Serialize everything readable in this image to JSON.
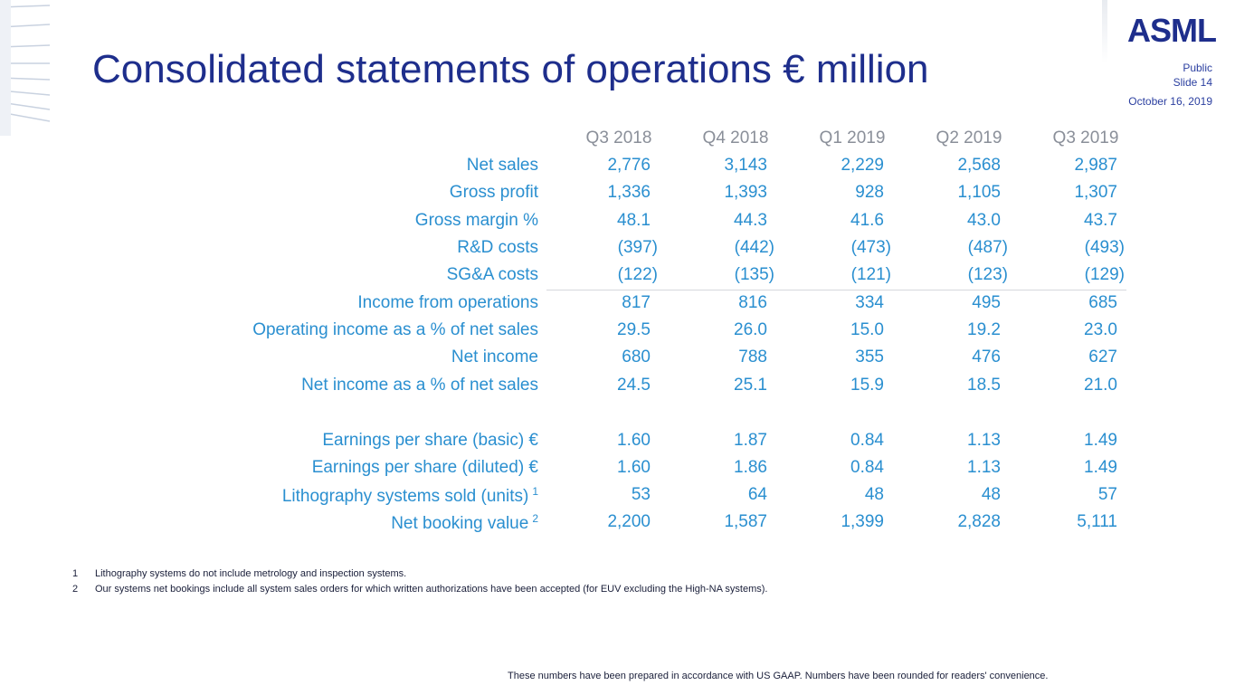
{
  "header": {
    "title": "Consolidated statements of operations € million",
    "classification": "Public",
    "slide_label": "Slide 14",
    "date": "October 16, 2019",
    "logo_text": "ASML",
    "brand_color": "#1e2e8c",
    "accent_color": "#2a8fd0"
  },
  "table": {
    "columns": [
      "Q3 2018",
      "Q4 2018",
      "Q1 2019",
      "Q2 2019",
      "Q3 2019"
    ],
    "rows": [
      {
        "label": "Net sales",
        "values": [
          "2,776",
          "3,143",
          "2,229",
          "2,568",
          "2,987"
        ]
      },
      {
        "label": "Gross profit",
        "values": [
          "1,336",
          "1,393",
          "928",
          "1,105",
          "1,307"
        ]
      },
      {
        "label": "Gross margin %",
        "values": [
          "48.1",
          "44.3",
          "41.6",
          "43.0",
          "43.7"
        ]
      },
      {
        "label": "R&D costs",
        "values": [
          "(397)",
          "(442)",
          "(473)",
          "(487)",
          "(493)"
        ]
      },
      {
        "label": "SG&A costs",
        "values": [
          "(122)",
          "(135)",
          "(121)",
          "(123)",
          "(129)"
        ]
      },
      {
        "label": "Income from operations",
        "values": [
          "817",
          "816",
          "334",
          "495",
          "685"
        ]
      },
      {
        "label": "Operating income as a % of net sales",
        "values": [
          "29.5",
          "26.0",
          "15.0",
          "19.2",
          "23.0"
        ]
      },
      {
        "label": "Net income",
        "values": [
          "680",
          "788",
          "355",
          "476",
          "627"
        ]
      },
      {
        "label": "Net income as a % of net sales",
        "values": [
          "24.5",
          "25.1",
          "15.9",
          "18.5",
          "21.0"
        ]
      },
      {
        "label": "Earnings per share (basic) €",
        "values": [
          "1.60",
          "1.87",
          "0.84",
          "1.13",
          "1.49"
        ]
      },
      {
        "label": "Earnings per share (diluted) €",
        "values": [
          "1.60",
          "1.86",
          "0.84",
          "1.13",
          "1.49"
        ]
      },
      {
        "label": "Lithography systems sold (units)",
        "sup": "1",
        "values": [
          "53",
          "64",
          "48",
          "48",
          "57"
        ]
      },
      {
        "label": "Net booking value",
        "sup": "2",
        "values": [
          "2,200",
          "1,587",
          "1,399",
          "2,828",
          "5,111"
        ]
      }
    ]
  },
  "footnotes": [
    {
      "num": "1",
      "text": "Lithography systems do not include metrology and inspection systems."
    },
    {
      "num": "2",
      "text": "Our systems net bookings include all system sales orders for which written authorizations have been accepted (for EUV excluding the High-NA systems)."
    }
  ],
  "disclaimer": "These numbers have been prepared in accordance with US GAAP.  Numbers have been rounded for readers' convenience."
}
